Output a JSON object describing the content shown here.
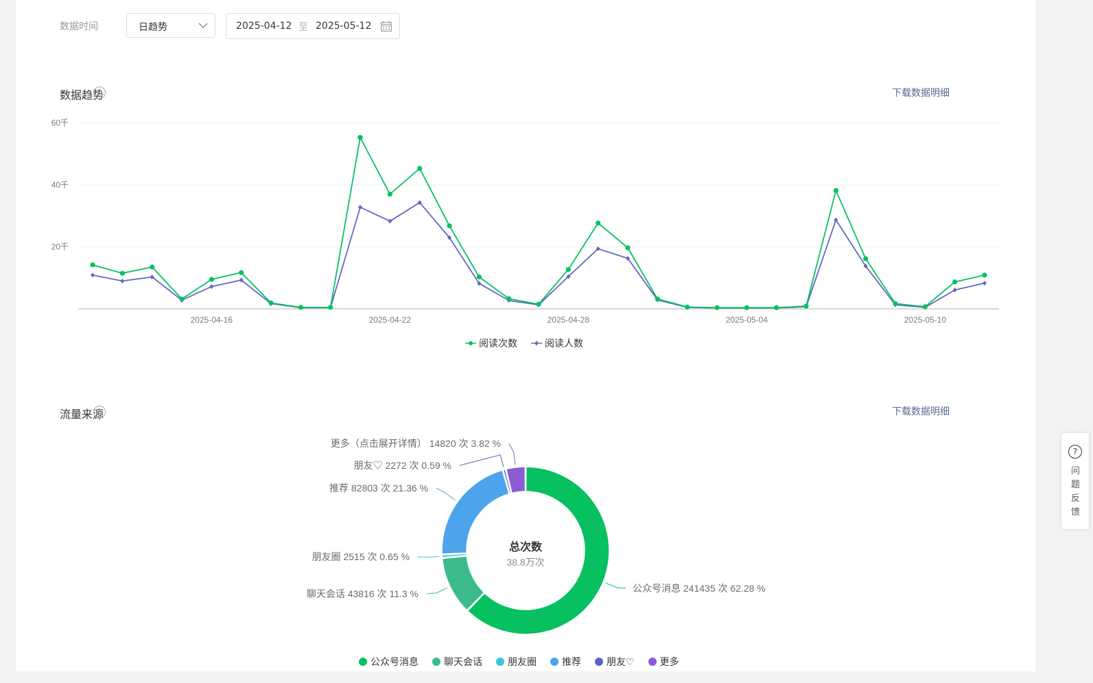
{
  "filter": {
    "label": "数据时间",
    "mode": "日趋势",
    "start_date": "2025-04-12",
    "separator": "至",
    "end_date": "2025-05-12"
  },
  "trend_section": {
    "title": "数据趋势",
    "help": "?",
    "download": "下载数据明细"
  },
  "source_section": {
    "title": "流量来源",
    "help": "?",
    "download": "下载数据明细"
  },
  "side_panel": {
    "icon": "?",
    "text": "问题反馈"
  },
  "colors": {
    "read_count": "#07c160",
    "read_users": "#6467c0",
    "accent_link": "#576b95"
  },
  "chart_data": [
    {
      "type": "line",
      "title": "",
      "xlabel": "",
      "ylabel": "",
      "x": [
        "2025-04-12",
        "2025-04-13",
        "2025-04-14",
        "2025-04-15",
        "2025-04-16",
        "2025-04-17",
        "2025-04-18",
        "2025-04-19",
        "2025-04-20",
        "2025-04-21",
        "2025-04-22",
        "2025-04-23",
        "2025-04-24",
        "2025-04-25",
        "2025-04-26",
        "2025-04-27",
        "2025-04-28",
        "2025-04-29",
        "2025-04-30",
        "2025-05-01",
        "2025-05-02",
        "2025-05-03",
        "2025-05-04",
        "2025-05-05",
        "2025-05-06",
        "2025-05-07",
        "2025-05-08",
        "2025-05-09",
        "2025-05-10",
        "2025-05-11",
        "2025-05-12"
      ],
      "xticks": [
        "2025-04-16",
        "2025-04-22",
        "2025-04-28",
        "2025-05-04",
        "2025-05-10"
      ],
      "yticks": [
        "20千",
        "40千",
        "60千"
      ],
      "ylim": [
        0,
        60000
      ],
      "grid": true,
      "legend_position": "bottom",
      "series": [
        {
          "name": "阅读次数",
          "marker": "circle",
          "color": "#07c160",
          "values": [
            14200,
            11500,
            13500,
            3200,
            9500,
            11700,
            1900,
            500,
            500,
            55300,
            37000,
            45300,
            26800,
            10300,
            3300,
            1500,
            12700,
            27700,
            19700,
            3200,
            600,
            400,
            400,
            400,
            900,
            38200,
            16200,
            1700,
            700,
            8700,
            10900
          ]
        },
        {
          "name": "阅读人数",
          "marker": "diamond",
          "color": "#6467c0",
          "values": [
            10900,
            9000,
            10300,
            2800,
            7200,
            9300,
            1700,
            400,
            400,
            32800,
            28300,
            34300,
            23000,
            8200,
            2700,
            1300,
            10400,
            19400,
            16300,
            2900,
            500,
            300,
            300,
            300,
            700,
            28700,
            13800,
            1300,
            500,
            6100,
            8300
          ]
        }
      ]
    },
    {
      "type": "pie",
      "donut": true,
      "center_title": "总次数",
      "center_value": "38.8万次",
      "legend_position": "bottom",
      "slices": [
        {
          "name": "公众号消息",
          "value": 241435,
          "percent": 62.28,
          "label": "公众号消息 241435 次 62.28 %",
          "color": "#07c160"
        },
        {
          "name": "聊天会话",
          "value": 43816,
          "percent": 11.3,
          "label": "聊天会话 43816 次 11.3 %",
          "color": "#3cba8c"
        },
        {
          "name": "朋友圈",
          "value": 2515,
          "percent": 0.65,
          "label": "朋友圈 2515 次 0.65 %",
          "color": "#3fc3dc"
        },
        {
          "name": "推荐",
          "value": 82803,
          "percent": 21.36,
          "label": "推荐 82803 次 21.36 %",
          "color": "#4da3ec"
        },
        {
          "name": "朋友♡",
          "value": 2272,
          "percent": 0.59,
          "label": "朋友♡ 2272 次 0.59 %",
          "color": "#5a63c8"
        },
        {
          "name": "更多",
          "value": 14820,
          "percent": 3.82,
          "label": "更多（点击展开详情） 14820 次 3.82 %",
          "color": "#8c5cd4"
        }
      ]
    }
  ]
}
